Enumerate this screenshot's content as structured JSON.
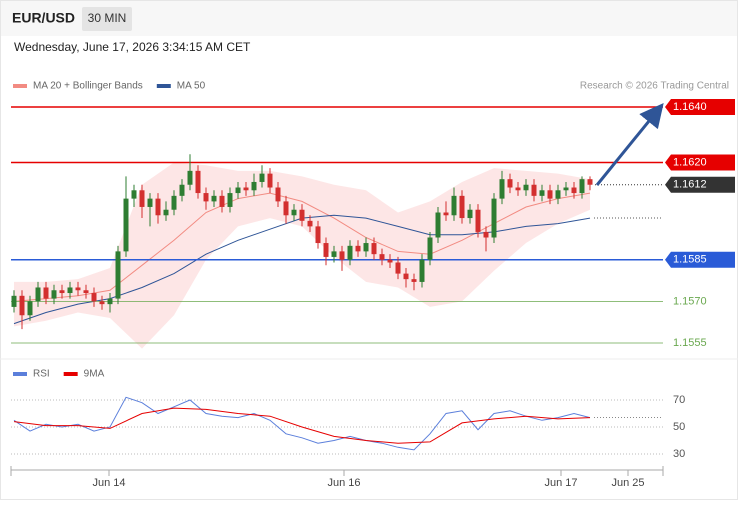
{
  "header": {
    "symbol": "EUR/USD",
    "interval": "30 MIN",
    "timestamp": "Wednesday, June 17, 2026 3:34:15 AM CET",
    "source": "Research © 2026 Trading Central"
  },
  "chart_data": [
    {
      "type": "candlestick",
      "up_color": "#2e7d32",
      "down_color": "#d32f2f",
      "ylim": [
        1.155,
        1.1645
      ],
      "xlim": [
        -0.375,
        81.125
      ],
      "candles": [
        [
          1.1568,
          1.1574,
          1.1566,
          1.1572
        ],
        [
          1.1572,
          1.1574,
          1.156,
          1.1565
        ],
        [
          1.1565,
          1.1572,
          1.1563,
          1.157
        ],
        [
          1.157,
          1.1577,
          1.1568,
          1.1575
        ],
        [
          1.1575,
          1.1577,
          1.1569,
          1.1571
        ],
        [
          1.1571,
          1.1576,
          1.1569,
          1.1574
        ],
        [
          1.1574,
          1.1576,
          1.1571,
          1.1573
        ],
        [
          1.1573,
          1.1577,
          1.1571,
          1.1575
        ],
        [
          1.1575,
          1.1577,
          1.1572,
          1.1574
        ],
        [
          1.1574,
          1.1576,
          1.1571,
          1.1573
        ],
        [
          1.1573,
          1.1575,
          1.1568,
          1.157
        ],
        [
          1.157,
          1.1572,
          1.1567,
          1.1569
        ],
        [
          1.1569,
          1.1573,
          1.1566,
          1.1571
        ],
        [
          1.1571,
          1.159,
          1.1569,
          1.1588
        ],
        [
          1.1588,
          1.1615,
          1.1586,
          1.1607
        ],
        [
          1.1607,
          1.1612,
          1.1604,
          1.161
        ],
        [
          1.161,
          1.1612,
          1.16,
          1.1604
        ],
        [
          1.1604,
          1.1609,
          1.1597,
          1.1607
        ],
        [
          1.1607,
          1.1609,
          1.1598,
          1.1601
        ],
        [
          1.1601,
          1.1606,
          1.1599,
          1.1603
        ],
        [
          1.1603,
          1.161,
          1.1601,
          1.1608
        ],
        [
          1.1608,
          1.1614,
          1.1606,
          1.1612
        ],
        [
          1.1612,
          1.1623,
          1.161,
          1.1617
        ],
        [
          1.1617,
          1.1619,
          1.1607,
          1.1609
        ],
        [
          1.1609,
          1.1611,
          1.1603,
          1.1606
        ],
        [
          1.1606,
          1.161,
          1.1604,
          1.1608
        ],
        [
          1.1608,
          1.161,
          1.1602,
          1.1604
        ],
        [
          1.1604,
          1.1611,
          1.1602,
          1.1609
        ],
        [
          1.1609,
          1.1613,
          1.1607,
          1.1611
        ],
        [
          1.1611,
          1.1613,
          1.1608,
          1.161
        ],
        [
          1.161,
          1.1616,
          1.1608,
          1.1613
        ],
        [
          1.1613,
          1.1619,
          1.1611,
          1.1616
        ],
        [
          1.1616,
          1.1618,
          1.1609,
          1.1611
        ],
        [
          1.1611,
          1.1613,
          1.1604,
          1.1606
        ],
        [
          1.1606,
          1.1608,
          1.1598,
          1.1601
        ],
        [
          1.1601,
          1.1605,
          1.1599,
          1.1603
        ],
        [
          1.1603,
          1.1605,
          1.1597,
          1.1599
        ],
        [
          1.1599,
          1.1601,
          1.1595,
          1.1597
        ],
        [
          1.1597,
          1.1599,
          1.1589,
          1.1591
        ],
        [
          1.1591,
          1.1593,
          1.1583,
          1.1586
        ],
        [
          1.1586,
          1.159,
          1.1584,
          1.1588
        ],
        [
          1.1588,
          1.159,
          1.1581,
          1.1585
        ],
        [
          1.1585,
          1.1592,
          1.1583,
          1.159
        ],
        [
          1.159,
          1.1592,
          1.1586,
          1.1588
        ],
        [
          1.1588,
          1.1593,
          1.1586,
          1.1591
        ],
        [
          1.1591,
          1.1593,
          1.1585,
          1.1587
        ],
        [
          1.1587,
          1.1589,
          1.1583,
          1.1585
        ],
        [
          1.1585,
          1.1587,
          1.1582,
          1.1584
        ],
        [
          1.1584,
          1.1586,
          1.1578,
          1.158
        ],
        [
          1.158,
          1.1582,
          1.1575,
          1.1578
        ],
        [
          1.1578,
          1.158,
          1.1574,
          1.1577
        ],
        [
          1.1577,
          1.1587,
          1.1575,
          1.1585
        ],
        [
          1.1585,
          1.1595,
          1.1583,
          1.1593
        ],
        [
          1.1593,
          1.1604,
          1.1591,
          1.1602
        ],
        [
          1.1602,
          1.1606,
          1.1599,
          1.1601
        ],
        [
          1.1601,
          1.1611,
          1.1599,
          1.1608
        ],
        [
          1.1608,
          1.161,
          1.1598,
          1.16
        ],
        [
          1.16,
          1.1605,
          1.1598,
          1.1603
        ],
        [
          1.1603,
          1.1605,
          1.1593,
          1.1595
        ],
        [
          1.1595,
          1.1597,
          1.1588,
          1.1593
        ],
        [
          1.1593,
          1.1609,
          1.1591,
          1.1607
        ],
        [
          1.1607,
          1.1617,
          1.1605,
          1.1614
        ],
        [
          1.1614,
          1.1616,
          1.1609,
          1.1611
        ],
        [
          1.1611,
          1.1613,
          1.1608,
          1.161
        ],
        [
          1.161,
          1.1614,
          1.1608,
          1.1612
        ],
        [
          1.1612,
          1.1614,
          1.1606,
          1.1608
        ],
        [
          1.1608,
          1.1612,
          1.1606,
          1.161
        ],
        [
          1.161,
          1.1612,
          1.1605,
          1.1607
        ],
        [
          1.1607,
          1.1612,
          1.1605,
          1.161
        ],
        [
          1.161,
          1.1613,
          1.1608,
          1.1611
        ],
        [
          1.1611,
          1.1613,
          1.1607,
          1.1609
        ],
        [
          1.1609,
          1.1615,
          1.1607,
          1.1614
        ],
        [
          1.1614,
          1.1615,
          1.161,
          1.1612
        ]
      ],
      "series": [
        {
          "name": "MA 20 + Bollinger Bands",
          "color": "#f28b82",
          "band_color": "#fde2e2",
          "x": [
            0,
            4,
            8,
            12,
            16,
            20,
            24,
            28,
            32,
            36,
            40,
            44,
            48,
            52,
            56,
            60,
            64,
            68,
            72
          ],
          "values": [
            1.157,
            1.1571,
            1.1572,
            1.1574,
            1.1583,
            1.1592,
            1.1602,
            1.1607,
            1.1609,
            1.1606,
            1.16,
            1.1593,
            1.1588,
            1.1587,
            1.1592,
            1.1598,
            1.1604,
            1.1607,
            1.1609
          ],
          "upper": [
            1.1577,
            1.1577,
            1.1578,
            1.1582,
            1.1612,
            1.162,
            1.1619,
            1.1617,
            1.1617,
            1.1615,
            1.1612,
            1.161,
            1.1602,
            1.1606,
            1.1613,
            1.1618,
            1.1617,
            1.1616,
            1.1614
          ],
          "lower": [
            1.1561,
            1.1563,
            1.1566,
            1.1564,
            1.1553,
            1.1565,
            1.1585,
            1.1597,
            1.16,
            1.1597,
            1.1586,
            1.1577,
            1.1575,
            1.1568,
            1.157,
            1.1581,
            1.1591,
            1.1598,
            1.1603
          ]
        },
        {
          "name": "MA 50",
          "color": "#2f5597",
          "x": [
            0,
            4,
            8,
            12,
            16,
            20,
            24,
            28,
            32,
            36,
            40,
            44,
            48,
            52,
            56,
            60,
            64,
            68,
            72
          ],
          "values": [
            1.1562,
            1.1566,
            1.1569,
            1.1571,
            1.1575,
            1.158,
            1.1587,
            1.1592,
            1.1596,
            1.16,
            1.1601,
            1.16,
            1.1597,
            1.1594,
            1.1594,
            1.1595,
            1.1597,
            1.1598,
            1.16
          ]
        }
      ],
      "levels": [
        {
          "value": 1.164,
          "label": "1.1640",
          "color": "#e60000",
          "boxed": true,
          "line": "solid"
        },
        {
          "value": 1.162,
          "label": "1.1620",
          "color": "#e60000",
          "boxed": true,
          "line": "solid"
        },
        {
          "value": 1.1612,
          "label": "1.1612",
          "color": "#333333",
          "boxed": true,
          "line": "dotted"
        },
        {
          "value": 1.1585,
          "label": "1.1585",
          "color": "#2a5bd7",
          "boxed": true,
          "line": "solid"
        },
        {
          "value": 1.157,
          "label": "1.1570",
          "color": "#6aa84f",
          "boxed": false,
          "line": "solid"
        },
        {
          "value": 1.1555,
          "label": "1.1555",
          "color": "#6aa84f",
          "boxed": false,
          "line": "solid"
        }
      ]
    },
    {
      "type": "line",
      "ylim": [
        20,
        80
      ],
      "yticks": [
        30,
        50,
        70
      ],
      "xlim": [
        -0.375,
        81.125
      ],
      "xticks": [
        {
          "value": 11.875,
          "label": "Jun 14"
        },
        {
          "value": 41.25,
          "label": "Jun 16"
        },
        {
          "value": 68.375,
          "label": "Jun 17"
        },
        {
          "value": 76.75,
          "label": "Jun 25"
        }
      ],
      "series": [
        {
          "name": "RSI",
          "color": "#5b7fdb",
          "x": [
            0,
            2,
            4,
            6,
            8,
            10,
            12,
            14,
            16,
            18,
            20,
            22,
            24,
            26,
            28,
            30,
            32,
            34,
            36,
            38,
            40,
            42,
            44,
            46,
            48,
            50,
            52,
            54,
            56,
            58,
            60,
            62,
            64,
            66,
            68,
            70,
            72
          ],
          "values": [
            55,
            47,
            52,
            50,
            52,
            47,
            50,
            72,
            68,
            60,
            65,
            70,
            60,
            58,
            57,
            60,
            55,
            45,
            42,
            38,
            40,
            43,
            40,
            38,
            35,
            33,
            45,
            60,
            62,
            48,
            60,
            62,
            58,
            55,
            57,
            60,
            57
          ]
        },
        {
          "name": "9MA",
          "color": "#e60000",
          "x": [
            0,
            4,
            8,
            12,
            16,
            20,
            24,
            28,
            32,
            36,
            40,
            44,
            48,
            52,
            56,
            60,
            64,
            68,
            72
          ],
          "values": [
            54,
            51,
            51,
            49,
            60,
            64,
            63,
            60,
            58,
            50,
            43,
            40,
            38,
            39,
            53,
            56,
            58,
            56,
            57
          ]
        }
      ]
    }
  ]
}
